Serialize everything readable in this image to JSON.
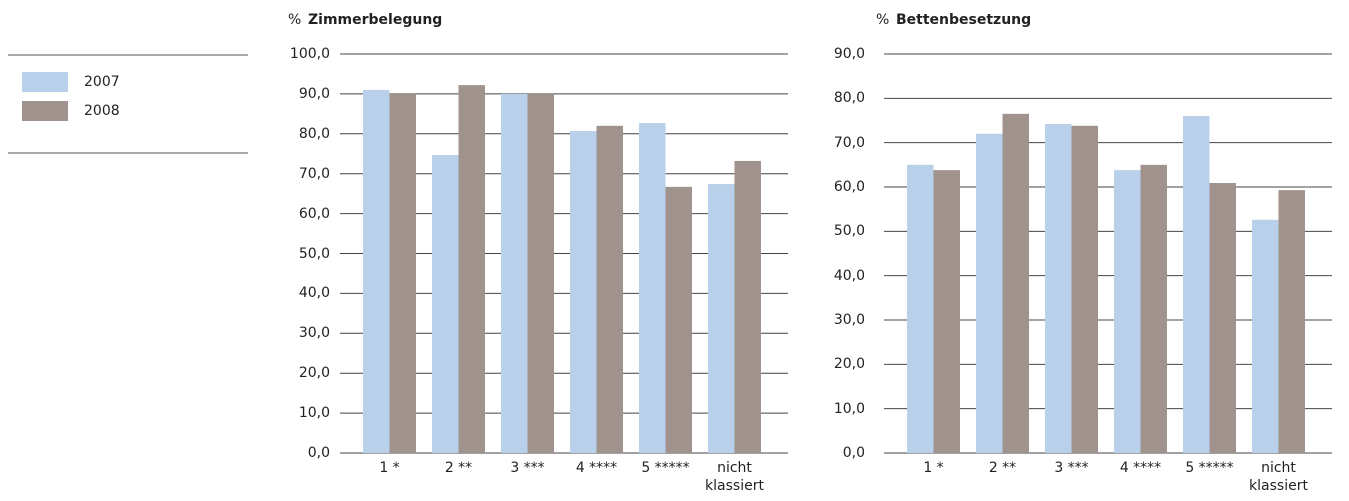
{
  "legend": {
    "entries": [
      "2007",
      "2008"
    ]
  },
  "chart_data": [
    {
      "type": "bar",
      "title": "Zimmerbelegung",
      "y_label": "%",
      "categories": [
        "1 *",
        "2 **",
        "3 ***",
        "4 ****",
        "5 *****",
        "nicht klassiert"
      ],
      "series": [
        {
          "name": "2007",
          "color": "#b8d0ea",
          "values": [
            91.0,
            74.7,
            90.0,
            80.7,
            82.7,
            67.4
          ]
        },
        {
          "name": "2008",
          "color": "#a0938e",
          "values": [
            90.2,
            92.2,
            90.2,
            82.0,
            66.7,
            73.2
          ]
        }
      ],
      "ylim": [
        0,
        100
      ],
      "yticks": [
        {
          "value": 0,
          "label": "0,0"
        },
        {
          "value": 10,
          "label": "10,0"
        },
        {
          "value": 20,
          "label": "20,0"
        },
        {
          "value": 30,
          "label": "30,0"
        },
        {
          "value": 40,
          "label": "40,0"
        },
        {
          "value": 50,
          "label": "50,0"
        },
        {
          "value": 60,
          "label": "60,0"
        },
        {
          "value": 70,
          "label": "70,0"
        },
        {
          "value": 80,
          "label": "80,0"
        },
        {
          "value": 90,
          "label": "90,0"
        },
        {
          "value": 100,
          "label": "100,0"
        }
      ],
      "grid": true
    },
    {
      "type": "bar",
      "title": "Bettenbesetzung",
      "y_label": "%",
      "categories": [
        "1 *",
        "2 **",
        "3 ***",
        "4 ****",
        "5 *****",
        "nicht klassiert"
      ],
      "series": [
        {
          "name": "2007",
          "color": "#b8d0ea",
          "values": [
            65.0,
            72.0,
            74.2,
            63.8,
            76.0,
            52.6
          ]
        },
        {
          "name": "2008",
          "color": "#a0938e",
          "values": [
            63.8,
            76.5,
            73.8,
            65.0,
            60.9,
            59.3
          ]
        }
      ],
      "ylim": [
        0,
        90
      ],
      "yticks": [
        {
          "value": 0,
          "label": "0,0"
        },
        {
          "value": 10,
          "label": "10,0"
        },
        {
          "value": 20,
          "label": "20,0"
        },
        {
          "value": 30,
          "label": "30,0"
        },
        {
          "value": 40,
          "label": "40,0"
        },
        {
          "value": 50,
          "label": "50,0"
        },
        {
          "value": 60,
          "label": "60,0"
        },
        {
          "value": 70,
          "label": "70,0"
        },
        {
          "value": 80,
          "label": "80,0"
        },
        {
          "value": 90,
          "label": "90,0"
        }
      ],
      "grid": true
    }
  ]
}
